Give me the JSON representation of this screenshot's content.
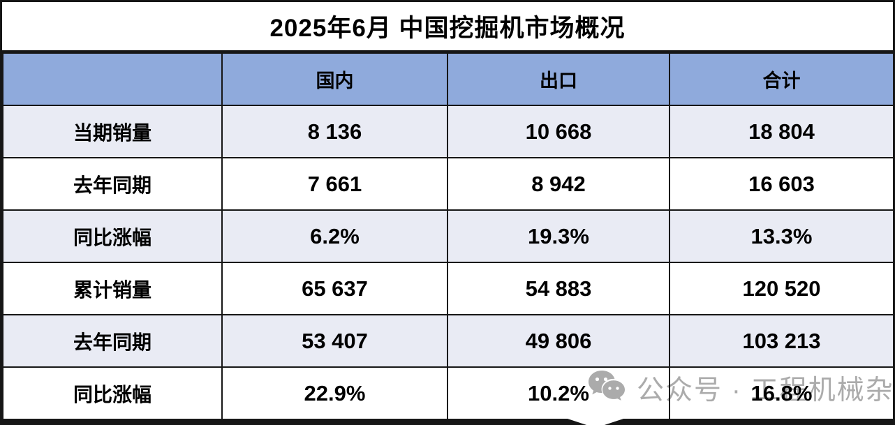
{
  "chart_data": {
    "type": "table",
    "title": "2025年6月 中国挖掘机市场概况",
    "columns": [
      "",
      "国内",
      "出口",
      "合计"
    ],
    "rows": [
      {
        "label": "当期销量",
        "values": [
          "8 136",
          "10 668",
          "18 804"
        ]
      },
      {
        "label": "去年同期",
        "values": [
          "7 661",
          "8 942",
          "16 603"
        ]
      },
      {
        "label": "同比涨幅",
        "values": [
          "6.2%",
          "19.3%",
          "13.3%"
        ]
      },
      {
        "label": "累计销量",
        "values": [
          "65 637",
          "54 883",
          "120 520"
        ]
      },
      {
        "label": "去年同期",
        "values": [
          "53 407",
          "49 806",
          "103 213"
        ]
      },
      {
        "label": "同比涨幅",
        "values": [
          "22.9%",
          "10.2%",
          "16.8%"
        ]
      }
    ]
  },
  "watermark": {
    "icon": "wechat-icon",
    "text": "公众号 · 工程机械杂志"
  },
  "colors": {
    "header_bg": "#8FAADC",
    "row_alt_bg": "#E9EBF4",
    "border": "#161616",
    "watermark": "#ABABAB"
  }
}
